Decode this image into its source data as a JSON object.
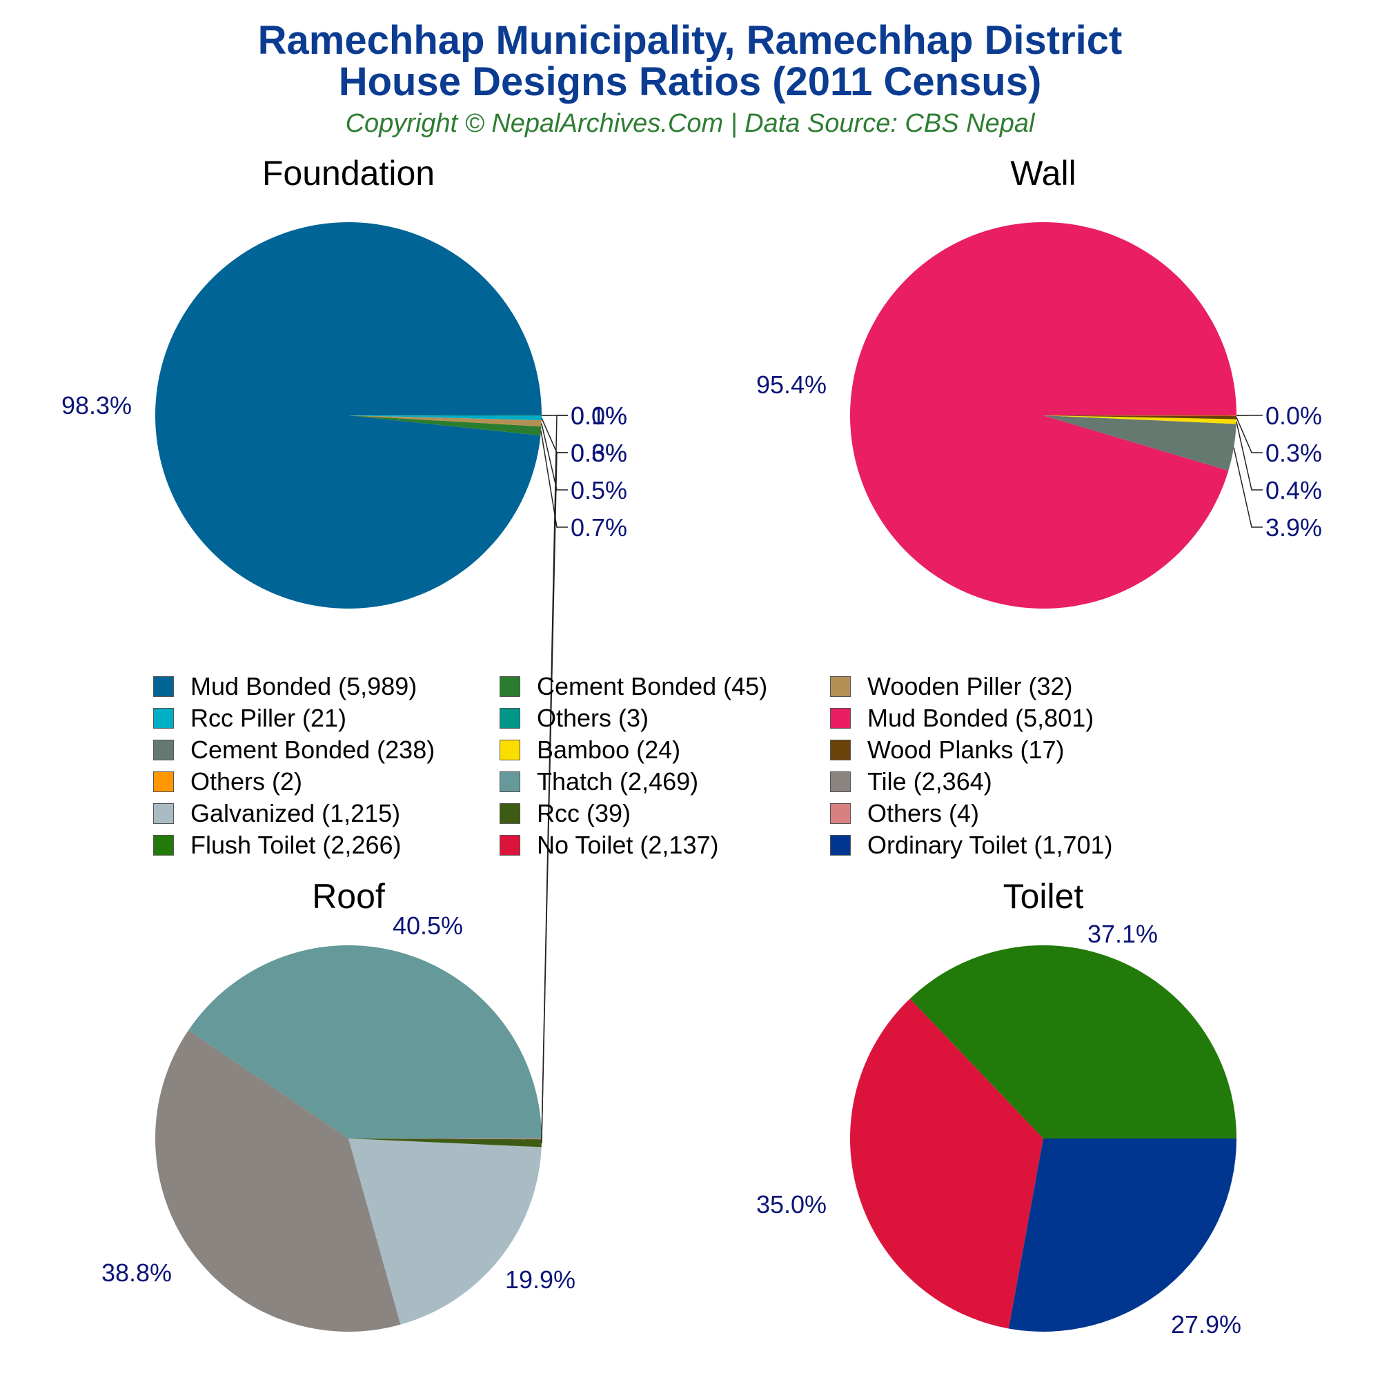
{
  "header": {
    "title_line1": "Ramechhap Municipality, Ramechhap District",
    "title_line2": "House Designs Ratios (2011 Census)",
    "subtitle": "Copyright © NepalArchives.Com | Data Source: CBS Nepal"
  },
  "chart_data": [
    {
      "type": "pie",
      "title": "Foundation",
      "slices": [
        {
          "label": "Mud Bonded",
          "value": 5989,
          "pct": "98.3%",
          "color": "#006496"
        },
        {
          "label": "Cement Bonded",
          "value": 45,
          "pct": "0.7%",
          "color": "#2a7d2e"
        },
        {
          "label": "Wooden Piller",
          "value": 32,
          "pct": "0.5%",
          "color": "#b59055"
        },
        {
          "label": "Rcc Piller",
          "value": 21,
          "pct": "0.3%",
          "color": "#00aec7"
        },
        {
          "label": "Others",
          "value": 3,
          "pct": "0.0%",
          "color": "#009688"
        }
      ]
    },
    {
      "type": "pie",
      "title": "Wall",
      "slices": [
        {
          "label": "Mud Bonded",
          "value": 5801,
          "pct": "95.4%",
          "color": "#e91e63"
        },
        {
          "label": "Cement Bonded",
          "value": 238,
          "pct": "3.9%",
          "color": "#667970"
        },
        {
          "label": "Bamboo",
          "value": 24,
          "pct": "0.4%",
          "color": "#f9de00"
        },
        {
          "label": "Wood Planks",
          "value": 17,
          "pct": "0.3%",
          "color": "#6b4209"
        },
        {
          "label": "Others",
          "value": 2,
          "pct": "0.0%",
          "color": "#ff9800"
        }
      ]
    },
    {
      "type": "pie",
      "title": "Roof",
      "slices": [
        {
          "label": "Thatch",
          "value": 2469,
          "pct": "40.5%",
          "color": "#669999"
        },
        {
          "label": "Tile",
          "value": 2364,
          "pct": "38.8%",
          "color": "#8b8581"
        },
        {
          "label": "Galvanized",
          "value": 1215,
          "pct": "19.9%",
          "color": "#a9bcc4"
        },
        {
          "label": "Rcc",
          "value": 39,
          "pct": "0.6%",
          "color": "#3e5b14"
        },
        {
          "label": "Others",
          "value": 4,
          "pct": "0.1%",
          "color": "#d98080"
        }
      ]
    },
    {
      "type": "pie",
      "title": "Toilet",
      "slices": [
        {
          "label": "Flush Toilet",
          "value": 2266,
          "pct": "37.1%",
          "color": "#217a09"
        },
        {
          "label": "No Toilet",
          "value": 2137,
          "pct": "35.0%",
          "color": "#dc143c"
        },
        {
          "label": "Ordinary Toilet",
          "value": 1701,
          "pct": "27.9%",
          "color": "#003690"
        }
      ]
    }
  ],
  "legend": [
    {
      "label": "Mud Bonded (5,989)",
      "color": "#006496"
    },
    {
      "label": "Cement Bonded (45)",
      "color": "#2a7d2e"
    },
    {
      "label": "Wooden Piller (32)",
      "color": "#b59055"
    },
    {
      "label": "Rcc Piller (21)",
      "color": "#00aec7"
    },
    {
      "label": "Others (3)",
      "color": "#009688"
    },
    {
      "label": "Mud Bonded (5,801)",
      "color": "#e91e63"
    },
    {
      "label": "Cement Bonded (238)",
      "color": "#667970"
    },
    {
      "label": "Bamboo (24)",
      "color": "#f9de00"
    },
    {
      "label": "Wood Planks (17)",
      "color": "#6b4209"
    },
    {
      "label": "Others (2)",
      "color": "#ff9800"
    },
    {
      "label": "Thatch (2,469)",
      "color": "#669999"
    },
    {
      "label": "Tile (2,364)",
      "color": "#8b8581"
    },
    {
      "label": "Galvanized (1,215)",
      "color": "#a9bcc4"
    },
    {
      "label": "Rcc (39)",
      "color": "#3e5b14"
    },
    {
      "label": "Others (4)",
      "color": "#d98080"
    },
    {
      "label": "Flush Toilet (2,266)",
      "color": "#217a09"
    },
    {
      "label": "No Toilet (2,137)",
      "color": "#dc143c"
    },
    {
      "label": "Ordinary Toilet (1,701)",
      "color": "#003690"
    }
  ]
}
